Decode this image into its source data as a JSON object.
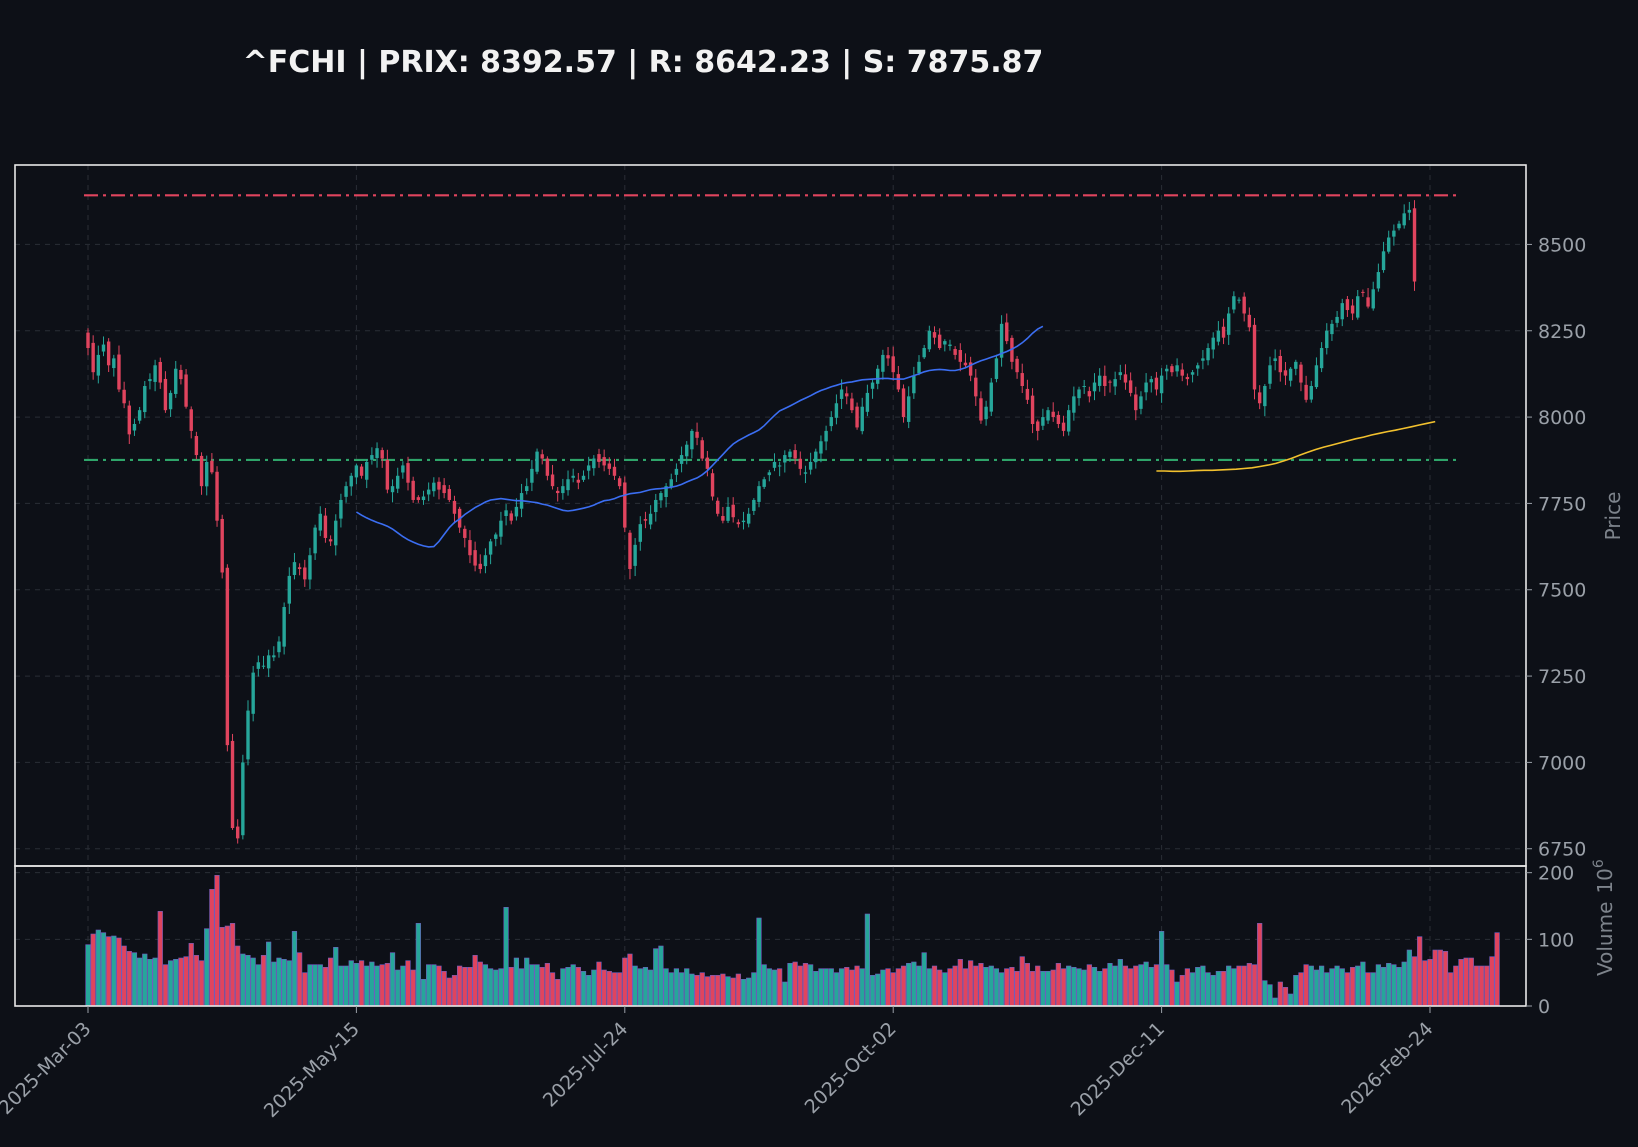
{
  "chart_data": {
    "type": "candlestick",
    "title": "^FCHI | PRIX: 8392.57 | R: 8642.23 | S: 7875.87",
    "ylabel": "Price",
    "ylabel_volume": "Volume",
    "volume_multiplier": "10",
    "volume_exponent": "6",
    "ylim": [
      6700,
      8730
    ],
    "volume_ylim": [
      0,
      210
    ],
    "yticks": [
      6750,
      7000,
      7250,
      7500,
      7750,
      8000,
      8250,
      8500
    ],
    "volume_yticks": [
      0,
      100,
      200
    ],
    "xtick_labels": [
      "2025-Mar-03",
      "2025-May-15",
      "2025-Jul-24",
      "2025-Oct-02",
      "2025-Dec-11",
      "2026-Feb-24"
    ],
    "xtick_index": [
      0,
      52,
      104,
      156,
      208,
      260
    ],
    "grid": true,
    "resistance": 8642.23,
    "support": 7875.87,
    "last_price": 8392.57,
    "closes": [
      8200,
      8130,
      8180,
      8210,
      8150,
      8170,
      8080,
      8040,
      7950,
      7980,
      8020,
      8090,
      8110,
      8150,
      8100,
      8020,
      8070,
      8140,
      8110,
      8030,
      7960,
      7890,
      7800,
      7870,
      7840,
      7700,
      7550,
      7050,
      6810,
      6780,
      7000,
      7150,
      7260,
      7290,
      7280,
      7310,
      7310,
      7350,
      7450,
      7540,
      7580,
      7560,
      7530,
      7600,
      7680,
      7720,
      7650,
      7640,
      7700,
      7760,
      7800,
      7830,
      7860,
      7830,
      7870,
      7890,
      7910,
      7880,
      7790,
      7800,
      7830,
      7860,
      7810,
      7760,
      7760,
      7770,
      7790,
      7810,
      7790,
      7780,
      7760,
      7720,
      7680,
      7650,
      7600,
      7570,
      7560,
      7600,
      7640,
      7660,
      7700,
      7730,
      7700,
      7740,
      7780,
      7800,
      7850,
      7900,
      7880,
      7830,
      7800,
      7780,
      7800,
      7820,
      7830,
      7810,
      7830,
      7860,
      7880,
      7870,
      7860,
      7850,
      7830,
      7800,
      7680,
      7560,
      7630,
      7690,
      7700,
      7720,
      7760,
      7780,
      7800,
      7820,
      7850,
      7890,
      7920,
      7960,
      7940,
      7880,
      7850,
      7770,
      7720,
      7700,
      7740,
      7710,
      7690,
      7700,
      7720,
      7760,
      7800,
      7820,
      7840,
      7870,
      7860,
      7890,
      7900,
      7880,
      7850,
      7840,
      7870,
      7900,
      7930,
      7960,
      8000,
      8040,
      8080,
      8060,
      8020,
      7970,
      8030,
      8070,
      8100,
      8140,
      8180,
      8170,
      8130,
      8080,
      8000,
      8060,
      8120,
      8160,
      8200,
      8250,
      8230,
      8200,
      8220,
      8210,
      8180,
      8160,
      8150,
      8120,
      8060,
      7990,
      8030,
      8100,
      8170,
      8270,
      8220,
      8160,
      8130,
      8090,
      8050,
      7980,
      7960,
      8000,
      8020,
      8000,
      7980,
      7960,
      8020,
      8060,
      8080,
      8090,
      8060,
      8100,
      8120,
      8090,
      8100,
      8110,
      8130,
      8100,
      8070,
      8020,
      8060,
      8100,
      8110,
      8080,
      8120,
      8140,
      8130,
      8150,
      8120,
      8110,
      8130,
      8150,
      8170,
      8200,
      8230,
      8250,
      8230,
      8300,
      8350,
      8340,
      8300,
      8260,
      8080,
      8040,
      8090,
      8150,
      8170,
      8130,
      8120,
      8140,
      8160,
      8100,
      8050,
      8090,
      8150,
      8200,
      8250,
      8270,
      8290,
      8330,
      8310,
      8300,
      8350,
      8360,
      8320,
      8370,
      8420,
      8480,
      8520,
      8540,
      8560,
      8590,
      8600,
      8392.57
    ],
    "ma_short_start": 52,
    "ma_short": [
      7725,
      7716,
      7708,
      7701,
      7695,
      7690,
      7684,
      7676,
      7665,
      7654,
      7645,
      7638,
      7632,
      7627,
      7624,
      7625,
      7640,
      7660,
      7680,
      7695,
      7705,
      7718,
      7728,
      7738,
      7746,
      7754,
      7760,
      7762,
      7764,
      7762,
      7760,
      7758,
      7758,
      7756,
      7754,
      7752,
      7748,
      7745,
      7740,
      7735,
      7730,
      7728,
      7730,
      7733,
      7736,
      7740,
      7745,
      7752,
      7758,
      7760,
      7764,
      7770,
      7774,
      7778,
      7780,
      7782,
      7786,
      7790,
      7792,
      7793,
      7795,
      7797,
      7800,
      7805,
      7812,
      7818,
      7824,
      7833,
      7845,
      7860,
      7876,
      7892,
      7908,
      7922,
      7932,
      7940,
      7948,
      7955,
      7963,
      7975,
      7990,
      8005,
      8018,
      8025,
      8032,
      8040,
      8048,
      8055,
      8062,
      8070,
      8077,
      8082,
      8088,
      8092,
      8097,
      8100,
      8102,
      8105,
      8108,
      8109,
      8110,
      8111,
      8112,
      8112,
      8110,
      8110,
      8110,
      8115,
      8120,
      8125,
      8131,
      8135,
      8137,
      8138,
      8137,
      8135,
      8135,
      8138,
      8143,
      8150,
      8157,
      8163,
      8168,
      8173,
      8178,
      8184,
      8190,
      8197,
      8205,
      8215,
      8228,
      8243,
      8255,
      8263
    ],
    "ma_long_start": 207,
    "ma_long": [
      7844,
      7844,
      7843,
      7843,
      7844,
      7845,
      7846,
      7846,
      7847,
      7848,
      7849,
      7851,
      7853,
      7857,
      7861,
      7866,
      7873,
      7881,
      7890,
      7898,
      7906,
      7913,
      7919,
      7925,
      7931,
      7937,
      7942,
      7948,
      7953,
      7958,
      7962,
      7967,
      7972,
      7977,
      7982,
      7987
    ],
    "volume": [
      92,
      108,
      114,
      110,
      104,
      105,
      102,
      90,
      82,
      80,
      72,
      78,
      70,
      72,
      142,
      62,
      68,
      70,
      72,
      74,
      94,
      76,
      68,
      116,
      175,
      196,
      118,
      120,
      124,
      90,
      78,
      76,
      72,
      62,
      76,
      96,
      66,
      72,
      70,
      68,
      112,
      80,
      50,
      62,
      62,
      62,
      58,
      72,
      88,
      60,
      60,
      68,
      64,
      68,
      60,
      66,
      60,
      62,
      64,
      80,
      54,
      60,
      68,
      54,
      124,
      40,
      62,
      62,
      60,
      52,
      42,
      46,
      60,
      58,
      58,
      76,
      66,
      62,
      56,
      54,
      56,
      148,
      58,
      72,
      56,
      72,
      62,
      62,
      58,
      64,
      50,
      40,
      56,
      58,
      62,
      58,
      52,
      46,
      54,
      66,
      54,
      52,
      50,
      50,
      72,
      78,
      60,
      56,
      58,
      54,
      86,
      90,
      56,
      50,
      56,
      50,
      56,
      48,
      46,
      50,
      44,
      46,
      46,
      48,
      44,
      42,
      48,
      40,
      42,
      50,
      132,
      62,
      56,
      54,
      56,
      36,
      64,
      66,
      60,
      64,
      62,
      52,
      56,
      56,
      56,
      50,
      56,
      58,
      54,
      60,
      56,
      138,
      46,
      48,
      54,
      56,
      50,
      56,
      60,
      64,
      66,
      60,
      80,
      56,
      60,
      54,
      50,
      56,
      60,
      70,
      56,
      68,
      60,
      64,
      58,
      60,
      56,
      50,
      56,
      58,
      52,
      74,
      64,
      52,
      60,
      52,
      52,
      54,
      64,
      56,
      60,
      58,
      56,
      54,
      62,
      58,
      52,
      56,
      64,
      60,
      70,
      60,
      56,
      60,
      62,
      66,
      58,
      62,
      112,
      62,
      54,
      36,
      46,
      56,
      50,
      58,
      60,
      50,
      46,
      52,
      52,
      60,
      56,
      60,
      60,
      64,
      62,
      124,
      38,
      32,
      12,
      36,
      28,
      18,
      46,
      50,
      62,
      60,
      54,
      60,
      50,
      56,
      60,
      56,
      50,
      58,
      60,
      66,
      50,
      50,
      62,
      58,
      64,
      62,
      58,
      66,
      84,
      74,
      104,
      68,
      70,
      84,
      84,
      82,
      50,
      60,
      70,
      72,
      72,
      60,
      60,
      60,
      74,
      110
    ]
  },
  "colors": {
    "background": "#0d1017",
    "up": "#26a69a",
    "down": "#e0445e",
    "resistance": "#e0445e",
    "support": "#2fa56a",
    "ma_short": "#3b6ef2",
    "ma_long": "#f2c12e",
    "frame": "#e8e8e8",
    "grid": "#2a2e36"
  }
}
